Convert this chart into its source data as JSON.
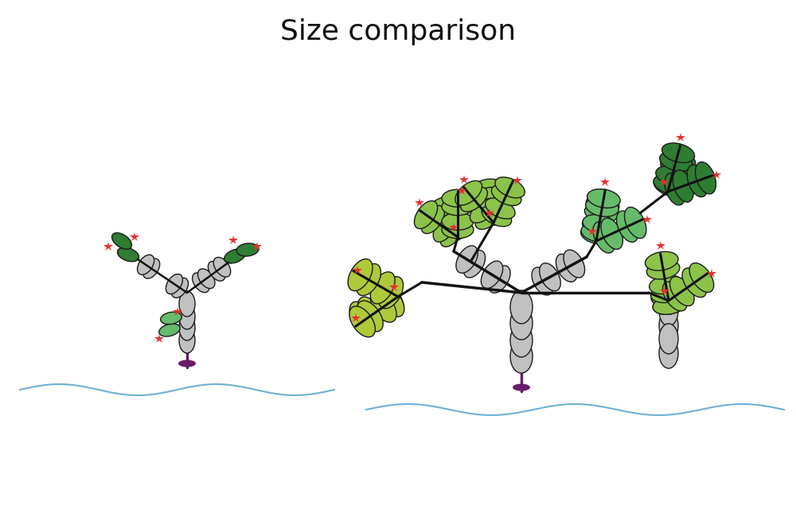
{
  "title": "Size comparison",
  "title_fontsize": 26,
  "bg_color": "#ffffff",
  "gray_color": "#c0c0c0",
  "dark_green_color": "#2e7d32",
  "light_green_color": "#8bc34a",
  "yellow_green_color": "#aec93a",
  "medium_green_color": "#66bb6a",
  "purple_color": "#6a1b6a",
  "blue_wave_color": "#6eb0d4",
  "red_star_color": "#e53030",
  "ellipse_edge_color": "#1a1a1a",
  "ellipse_lw": 1.0,
  "line_color": "#111111"
}
